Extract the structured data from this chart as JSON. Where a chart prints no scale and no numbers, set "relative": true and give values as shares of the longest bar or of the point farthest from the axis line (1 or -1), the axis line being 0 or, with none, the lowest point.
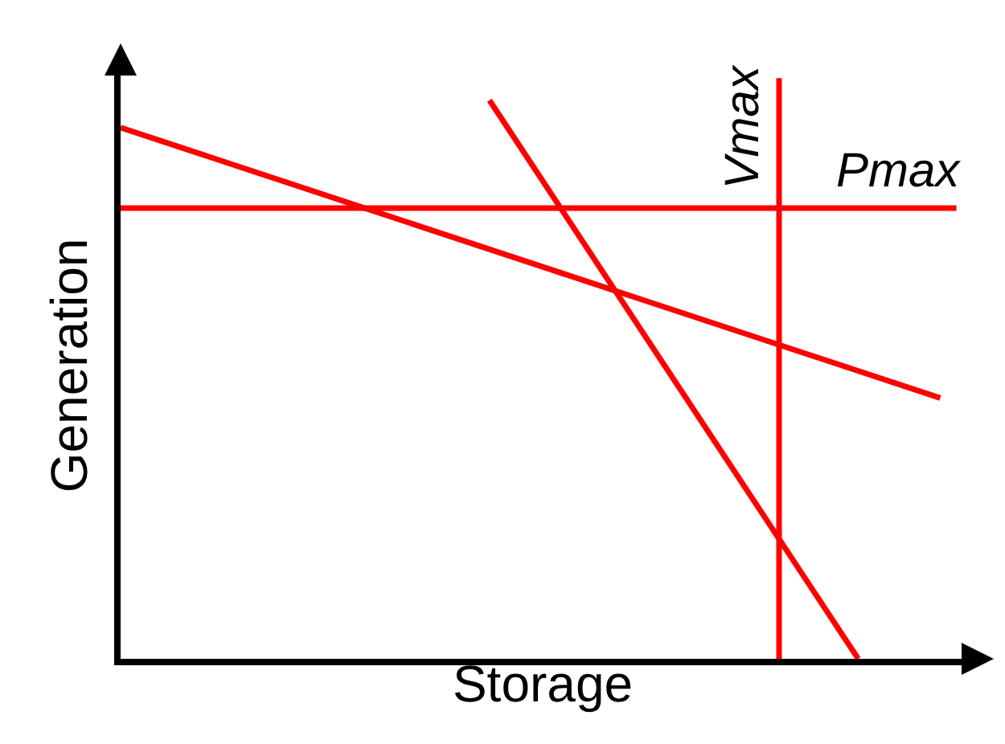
{
  "chart_data": {
    "type": "line",
    "relative": true,
    "xlabel": "Storage",
    "ylabel": "Generation",
    "categories": [
      null,
      null,
      null,
      null,
      null,
      null,
      null,
      null,
      null,
      null,
      null,
      null,
      null,
      null,
      null,
      null,
      null,
      null,
      null,
      null,
      null
    ],
    "series": [
      {
        "color": "#ff0000",
        "values": [
          0.951,
          null,
          null,
          null,
          null,
          null,
          null,
          null,
          null,
          null,
          null,
          null,
          null,
          null,
          null,
          null,
          null,
          null,
          null,
          null,
          0.467
        ]
      },
      {
        "color": "#ff0000",
        "values": [
          null,
          null,
          null,
          null,
          null,
          null,
          null,
          null,
          null,
          1,
          null,
          null,
          null,
          null,
          null,
          null,
          null,
          null,
          0,
          null,
          null
        ]
      }
    ],
    "ref_lines": [
      {
        "axis": "y",
        "value": 0.807,
        "label": "Pmax",
        "color": "#ff0000"
      }
    ],
    "annotations": [
      "Vmax"
    ]
  }
}
